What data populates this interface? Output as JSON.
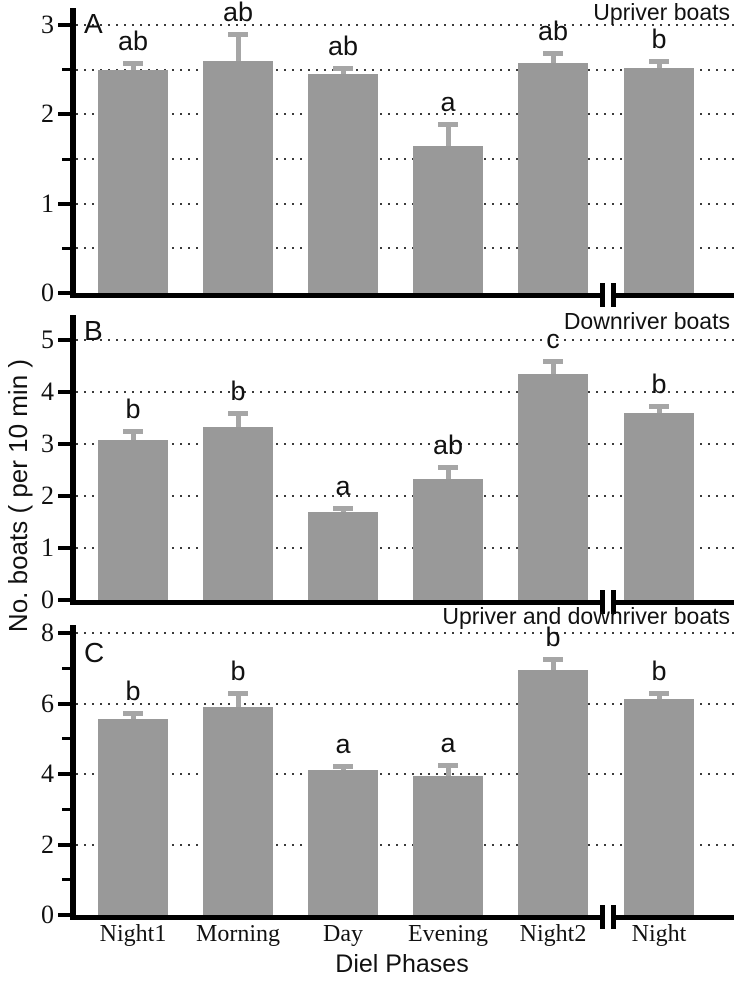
{
  "figure": {
    "xlabel": "Diel Phases",
    "ylabel": "No. boats ( per 10 min )",
    "categories": [
      "Night1",
      "Morning",
      "Day",
      "Evening",
      "Night2",
      "Night"
    ],
    "colors": {
      "bar": "#999999",
      "error_bar": "#a6a6a6",
      "axis": "#000000",
      "grid_dots": "#3a3a3a"
    },
    "axis_break_between": [
      "Night2",
      "Night"
    ]
  },
  "chart_data": [
    {
      "type": "bar",
      "panel_letter": "A",
      "title": "Upriver boats",
      "categories": [
        "Night1",
        "Morning",
        "Day",
        "Evening",
        "Night2",
        "Night"
      ],
      "values": [
        2.5,
        2.6,
        2.45,
        1.65,
        2.57,
        2.52
      ],
      "errors": [
        0.1,
        0.32,
        0.09,
        0.27,
        0.14,
        0.1
      ],
      "sig_letters": [
        "ab",
        "ab",
        "ab",
        "a",
        "ab",
        "b"
      ],
      "ylim": [
        0,
        3.2
      ],
      "yticks": [
        0,
        1,
        2,
        3
      ],
      "minor_ticks": [
        0.5,
        1.5,
        2.5
      ],
      "gridlines": [
        0.5,
        1,
        1.5,
        2,
        2.5,
        3
      ],
      "grid": "dotted horizontal",
      "legend": "none"
    },
    {
      "type": "bar",
      "panel_letter": "B",
      "title": "Downriver boats",
      "categories": [
        "Night1",
        "Morning",
        "Day",
        "Evening",
        "Night2",
        "Night"
      ],
      "values": [
        3.08,
        3.33,
        1.7,
        2.32,
        4.35,
        3.6
      ],
      "errors": [
        0.21,
        0.3,
        0.11,
        0.27,
        0.28,
        0.17
      ],
      "sig_letters": [
        "b",
        "b",
        "a",
        "ab",
        "c",
        "b"
      ],
      "ylim": [
        0,
        5.5
      ],
      "yticks": [
        0,
        1,
        2,
        3,
        4,
        5
      ],
      "minor_ticks": [],
      "gridlines": [
        1,
        2,
        3,
        4,
        5
      ],
      "grid": "dotted horizontal",
      "legend": "none"
    },
    {
      "type": "bar",
      "panel_letter": "C",
      "title": "Upriver and downriver boats",
      "categories": [
        "Night1",
        "Morning",
        "Day",
        "Evening",
        "Night2",
        "Night"
      ],
      "values": [
        5.57,
        5.9,
        4.12,
        3.95,
        6.95,
        6.12
      ],
      "errors": [
        0.21,
        0.45,
        0.16,
        0.36,
        0.38,
        0.23
      ],
      "sig_letters": [
        "b",
        "b",
        "a",
        "a",
        "b",
        "b"
      ],
      "ylim": [
        0,
        8.2
      ],
      "yticks": [
        0,
        2,
        4,
        6,
        8
      ],
      "minor_ticks": [
        1,
        3,
        5,
        7
      ],
      "gridlines": [
        2,
        4,
        6,
        8
      ],
      "grid": "dotted horizontal",
      "legend": "none"
    }
  ]
}
